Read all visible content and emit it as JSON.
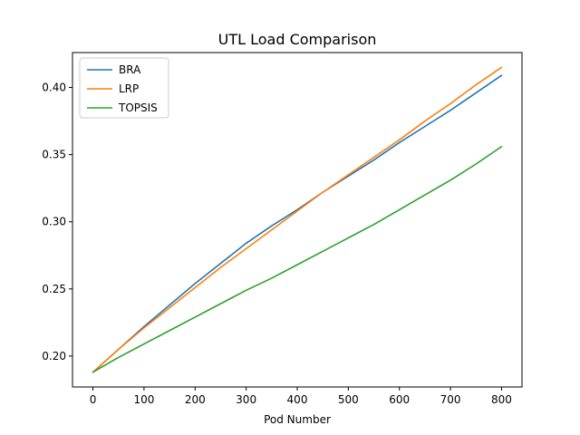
{
  "chart_data": {
    "type": "line",
    "title": "UTL Load Comparison",
    "xlabel": "Pod Number",
    "ylabel": "",
    "xlim": [
      -40,
      840
    ],
    "ylim": [
      0.177,
      0.426
    ],
    "xticks": [
      0,
      100,
      200,
      300,
      400,
      500,
      600,
      700,
      800
    ],
    "yticks": [
      0.2,
      0.25,
      0.3,
      0.35,
      0.4
    ],
    "ytick_labels": [
      "0.20",
      "0.25",
      "0.30",
      "0.35",
      "0.40"
    ],
    "grid": false,
    "legend_position": "top-left",
    "series": [
      {
        "name": "BRA",
        "color": "#1f77b4",
        "x": [
          0,
          50,
          100,
          150,
          200,
          250,
          300,
          350,
          400,
          450,
          500,
          550,
          600,
          650,
          700,
          750,
          800
        ],
        "y": [
          0.188,
          0.205,
          0.222,
          0.238,
          0.254,
          0.269,
          0.284,
          0.297,
          0.309,
          0.322,
          0.334,
          0.346,
          0.359,
          0.371,
          0.383,
          0.396,
          0.409
        ]
      },
      {
        "name": "LRP",
        "color": "#ff7f0e",
        "x": [
          0,
          50,
          100,
          150,
          200,
          250,
          300,
          350,
          400,
          450,
          500,
          550,
          600,
          650,
          700,
          750,
          800
        ],
        "y": [
          0.188,
          0.205,
          0.221,
          0.236,
          0.251,
          0.266,
          0.28,
          0.294,
          0.308,
          0.322,
          0.335,
          0.348,
          0.361,
          0.375,
          0.388,
          0.402,
          0.415
        ]
      },
      {
        "name": "TOPSIS",
        "color": "#2ca02c",
        "x": [
          0,
          50,
          100,
          150,
          200,
          250,
          300,
          350,
          400,
          450,
          500,
          550,
          600,
          650,
          700,
          750,
          800
        ],
        "y": [
          0.188,
          0.199,
          0.209,
          0.219,
          0.229,
          0.239,
          0.249,
          0.258,
          0.268,
          0.278,
          0.288,
          0.298,
          0.309,
          0.32,
          0.331,
          0.343,
          0.356
        ]
      }
    ]
  }
}
